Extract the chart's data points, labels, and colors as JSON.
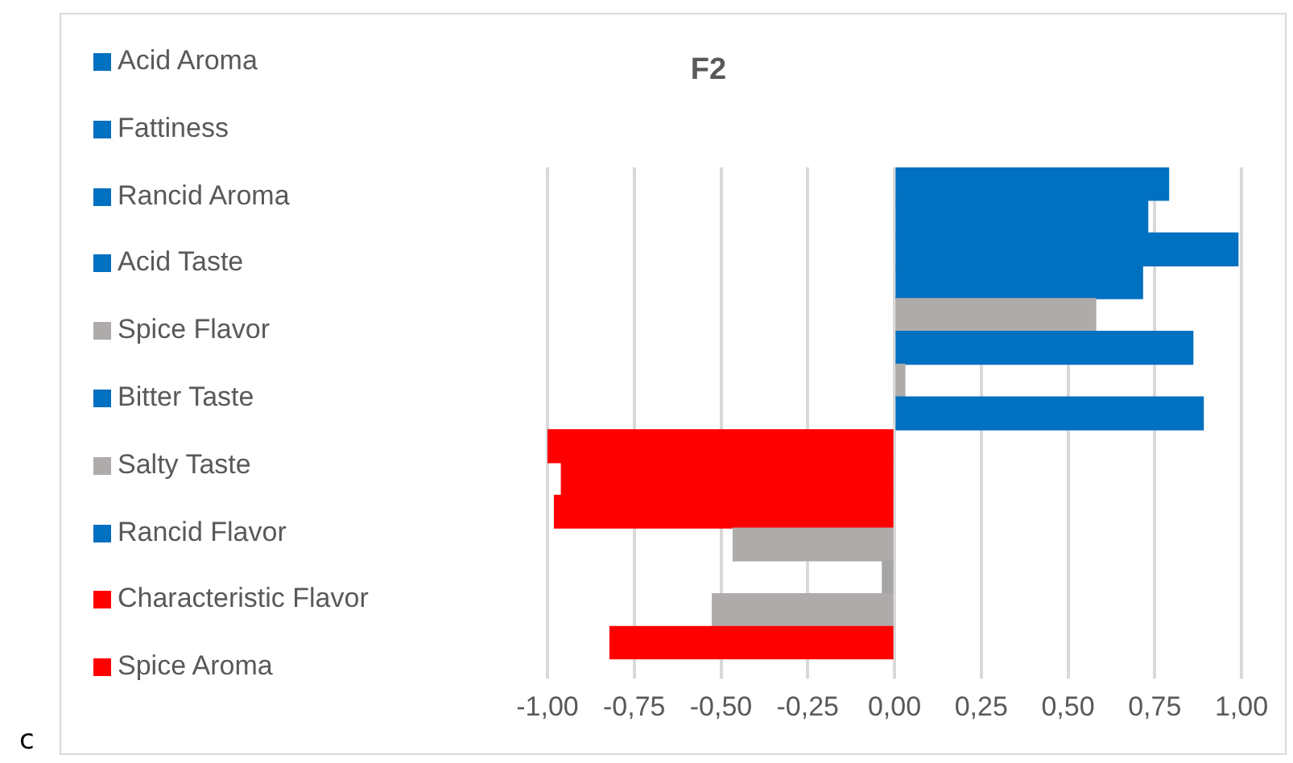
{
  "chart_data": {
    "type": "bar",
    "orientation": "horizontal",
    "title": "F2",
    "categories": [
      null,
      null,
      null,
      null,
      null,
      null,
      null,
      null,
      null,
      null,
      null,
      null,
      null,
      null,
      null
    ],
    "values": [
      0.79,
      0.73,
      0.99,
      0.715,
      0.58,
      0.86,
      0.03,
      0.89,
      -1.0,
      -0.96,
      -0.98,
      -0.465,
      -0.035,
      -0.525,
      -0.82
    ],
    "colors": [
      "#0070c0",
      "#0070c0",
      "#0070c0",
      "#0070c0",
      "#afabab",
      "#0070c0",
      "#afabab",
      "#0070c0",
      "#ff0000",
      "#ff0000",
      "#ff0000",
      "#afabab",
      "#a5a5a5",
      "#afabab",
      "#ff0000"
    ],
    "xlim": [
      -1,
      1
    ],
    "xticks": [
      {
        "value": -1,
        "label": "-1,00"
      },
      {
        "value": -0.75,
        "label": "-0,75"
      },
      {
        "value": -0.5,
        "label": "-0,50"
      },
      {
        "value": -0.25,
        "label": "-0,25"
      },
      {
        "value": 0,
        "label": "0,00"
      },
      {
        "value": 0.25,
        "label": "0,25"
      },
      {
        "value": 0.5,
        "label": "0,50"
      },
      {
        "value": 0.75,
        "label": "0,75"
      },
      {
        "value": 1,
        "label": "1,00"
      }
    ],
    "grid": "x",
    "annotations": [
      "Acid Aroma",
      "Fattiness",
      "Rancid Aroma",
      "Acid Taste",
      "Spice Flavor",
      "Bitter Taste",
      "Salty Taste",
      "Rancid Flavor",
      "Characteristic Flavor",
      "Spice Aroma",
      "c"
    ]
  }
}
